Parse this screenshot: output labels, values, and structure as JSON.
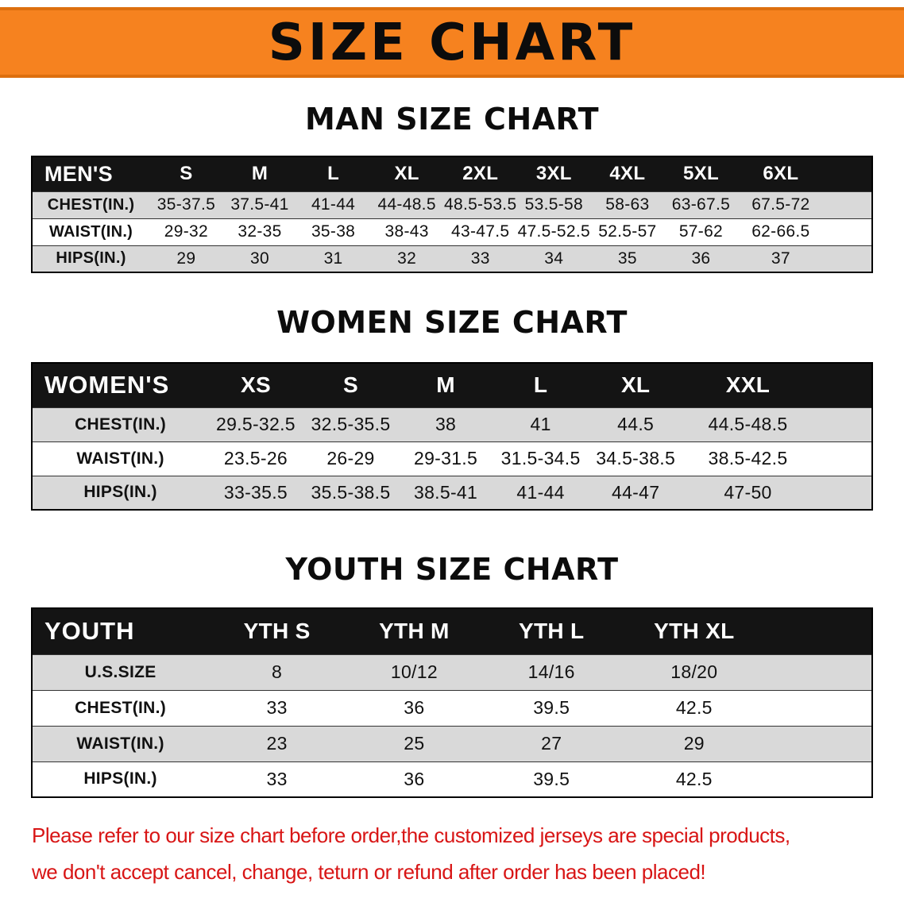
{
  "banner": {
    "title": "SIZE CHART"
  },
  "sections": [
    {
      "heading": "MAN SIZE CHART",
      "table": {
        "header": [
          "MEN'S",
          "S",
          "M",
          "L",
          "XL",
          "2XL",
          "3XL",
          "4XL",
          "5XL",
          "6XL"
        ],
        "rows": [
          [
            "CHEST(IN.)",
            "35-37.5",
            "37.5-41",
            "41-44",
            "44-48.5",
            "48.5-53.5",
            "53.5-58",
            "58-63",
            "63-67.5",
            "67.5-72"
          ],
          [
            "WAIST(IN.)",
            "29-32",
            "32-35",
            "35-38",
            "38-43",
            "43-47.5",
            "47.5-52.5",
            "52.5-57",
            "57-62",
            "62-66.5"
          ],
          [
            "HIPS(IN.)",
            "29",
            "30",
            "31",
            "32",
            "33",
            "34",
            "35",
            "36",
            "37"
          ]
        ]
      }
    },
    {
      "heading": "WOMEN SIZE CHART",
      "table": {
        "header": [
          "WOMEN'S",
          "XS",
          "S",
          "M",
          "L",
          "XL",
          "XXL"
        ],
        "rows": [
          [
            "CHEST(IN.)",
            "29.5-32.5",
            "32.5-35.5",
            "38",
            "41",
            "44.5",
            "44.5-48.5"
          ],
          [
            "WAIST(IN.)",
            "23.5-26",
            "26-29",
            "29-31.5",
            "31.5-34.5",
            "34.5-38.5",
            "38.5-42.5"
          ],
          [
            "HIPS(IN.)",
            "33-35.5",
            "35.5-38.5",
            "38.5-41",
            "41-44",
            "44-47",
            "47-50"
          ]
        ]
      }
    },
    {
      "heading": "YOUTH SIZE CHART",
      "table": {
        "header": [
          "YOUTH",
          "YTH S",
          "YTH M",
          "YTH L",
          "YTH XL"
        ],
        "rows": [
          [
            "U.S.SIZE",
            "8",
            "10/12",
            "14/16",
            "18/20"
          ],
          [
            "CHEST(IN.)",
            "33",
            "36",
            "39.5",
            "42.5"
          ],
          [
            "WAIST(IN.)",
            "23",
            "25",
            "27",
            "29"
          ],
          [
            "HIPS(IN.)",
            "33",
            "36",
            "39.5",
            "42.5"
          ]
        ]
      }
    }
  ],
  "disclaimer": {
    "line1": "Please refer to our size chart before order,the customized jerseys are special products,",
    "line2": "we don't accept cancel, change, teturn or refund after order has been placed!"
  },
  "colors": {
    "banner_orange": "#f6821f",
    "banner_border_orange": "#dd6f0e",
    "table_header_black": "#141414",
    "row_alt_gray": "#d9d9d9",
    "disclaimer_red": "#d81515"
  }
}
